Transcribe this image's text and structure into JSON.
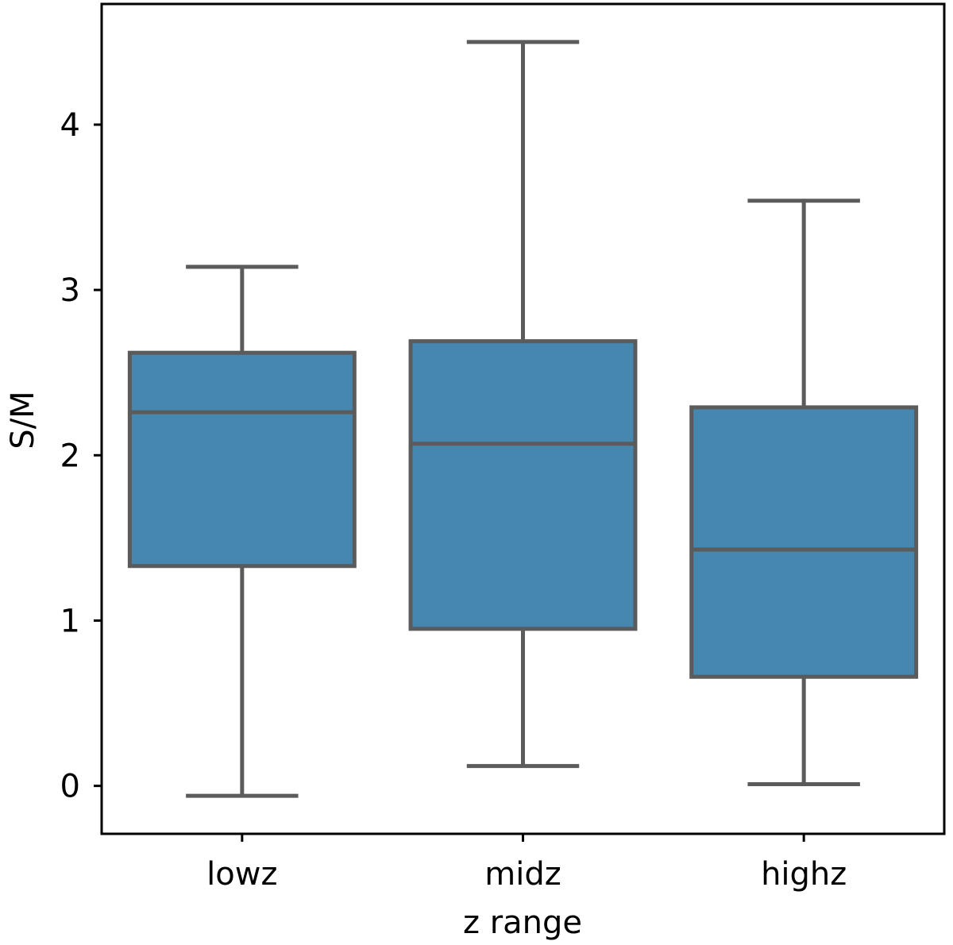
{
  "chart_data": {
    "type": "box",
    "title": "",
    "xlabel": "z range",
    "ylabel": "S/M",
    "categories": [
      "lowz",
      "midz",
      "highz"
    ],
    "boxes": [
      {
        "category": "lowz",
        "whisker_low": -0.06,
        "q1": 1.33,
        "median": 2.26,
        "q3": 2.62,
        "whisker_high": 3.14
      },
      {
        "category": "midz",
        "whisker_low": 0.12,
        "q1": 0.95,
        "median": 2.07,
        "q3": 2.69,
        "whisker_high": 4.5
      },
      {
        "category": "highz",
        "whisker_low": 0.01,
        "q1": 0.66,
        "median": 1.43,
        "q3": 2.29,
        "whisker_high": 3.54
      }
    ],
    "yticks": [
      0,
      1,
      2,
      3,
      4
    ],
    "ylim": [
      -0.29,
      4.73
    ],
    "grid": false,
    "colors": {
      "box_fill": "#4587AE",
      "line": "#5B5B5B",
      "axis": "#000000"
    }
  }
}
